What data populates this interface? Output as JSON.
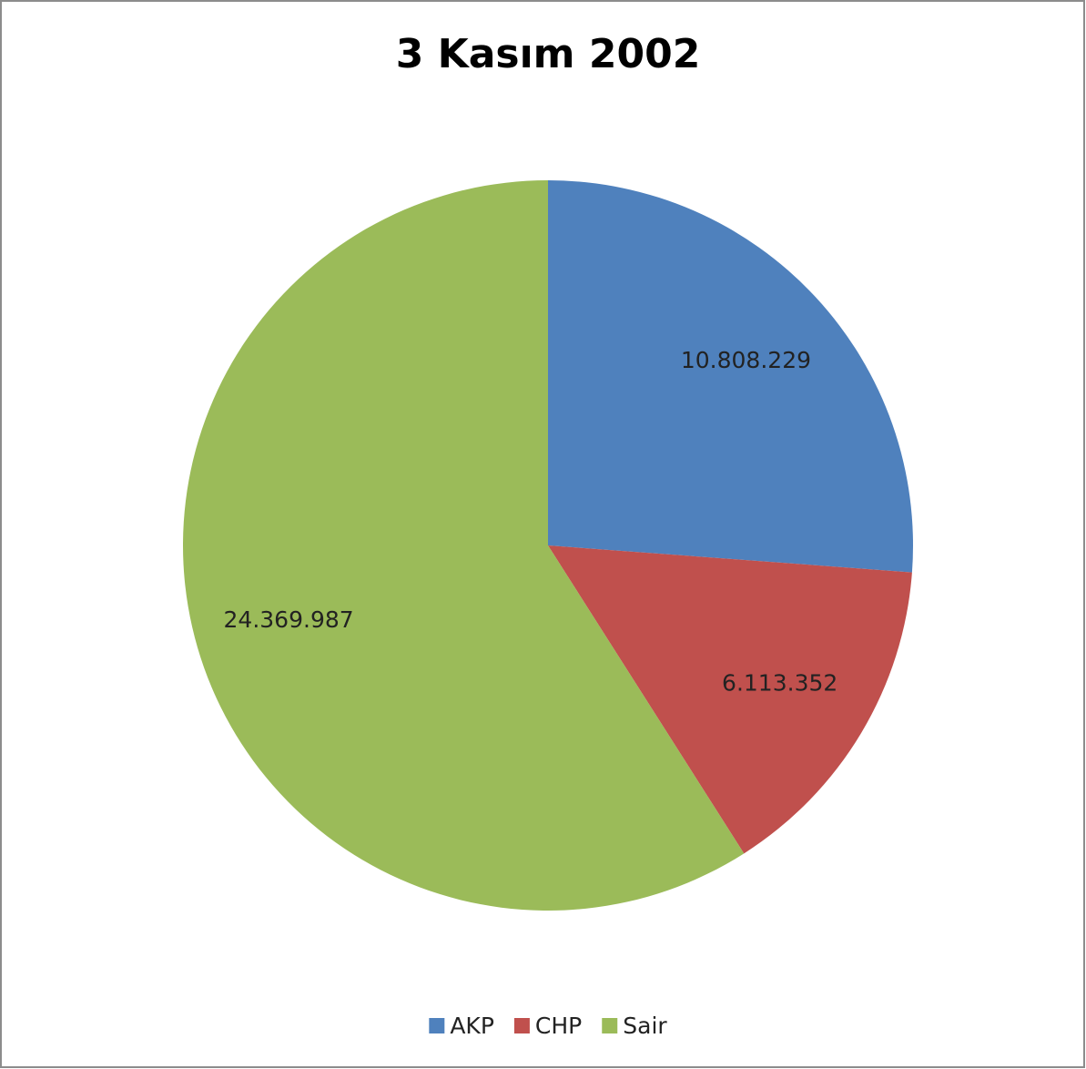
{
  "chart_data": {
    "type": "pie",
    "title": "3 Kasım 2002",
    "categories": [
      "AKP",
      "CHP",
      "Sair"
    ],
    "values": [
      10808229,
      6113352,
      24369987
    ],
    "value_labels": [
      "10.808.229",
      "6.113.352",
      "24.369.987"
    ],
    "colors": [
      "#4f81bd",
      "#c0504d",
      "#9bbb59"
    ],
    "legend": "bottom"
  }
}
